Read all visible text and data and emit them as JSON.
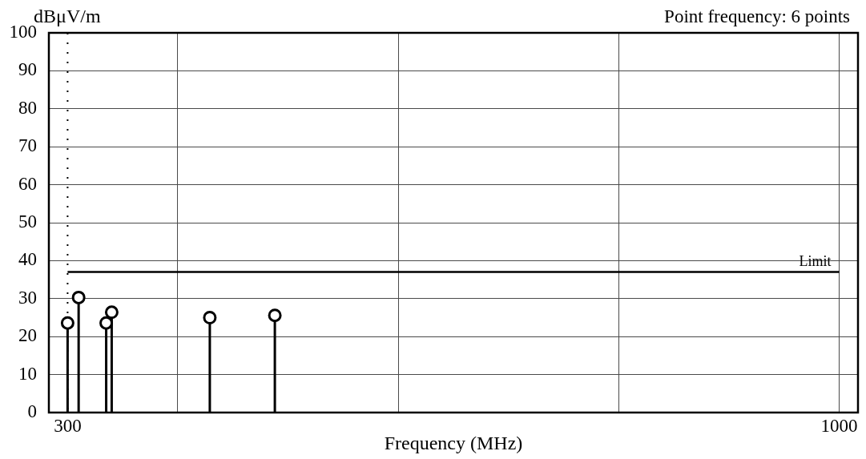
{
  "chart_data": {
    "type": "lollipop",
    "ylabel": "dBμV/m",
    "xlabel": "Frequency (MHz)",
    "annotations": [
      "Point frequency: 6 points"
    ],
    "x": [
      300,
      310,
      335,
      340,
      429,
      488
    ],
    "series": [
      {
        "color": "#000000",
        "values": [
          23.6,
          30.3,
          23.6,
          26.4,
          25.0,
          25.6
        ]
      }
    ],
    "xlim": [
      283,
      1017
    ],
    "xticks": [
      300,
      {
        "value": 400,
        "label": null
      },
      {
        "value": 600,
        "label": null
      },
      {
        "value": 800,
        "label": null
      },
      1000
    ],
    "ylim": [
      0,
      100
    ],
    "yticks": [
      0,
      10,
      20,
      30,
      40,
      50,
      60,
      70,
      80,
      90,
      100
    ],
    "grid": true,
    "marker": "circle",
    "ref_lines": [
      {
        "axis": "x",
        "value": 300,
        "line_style": "dotted",
        "color": "#000000"
      },
      {
        "axis": "y",
        "value": 37,
        "label": "Limit",
        "color": "#000000"
      }
    ]
  }
}
